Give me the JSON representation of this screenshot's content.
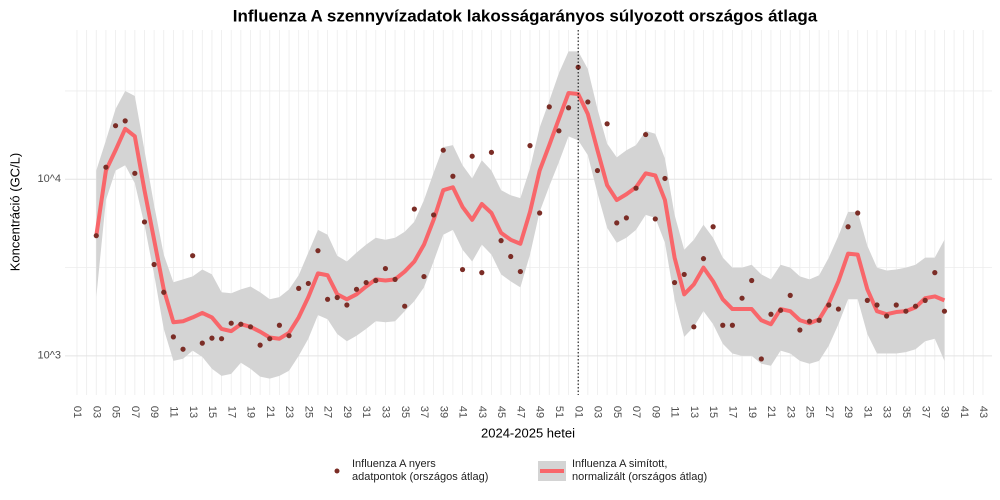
{
  "chart_data": {
    "type": "line",
    "title": "Influenza A szennyvízadatok lakosságarányos súlyozott országos átlaga",
    "x_label": "2024-2025 hetei",
    "y_label": "Koncentráció (GC/L)",
    "log_y": true,
    "grid": true,
    "legend": "bottom",
    "categories": [
      "01",
      null,
      "03",
      null,
      "05",
      null,
      "07",
      null,
      "09",
      null,
      "11",
      null,
      "13",
      null,
      "15",
      null,
      "17",
      null,
      "19",
      null,
      "21",
      null,
      "23",
      null,
      "25",
      null,
      "27",
      null,
      "29",
      null,
      "31",
      null,
      "33",
      null,
      "35",
      null,
      "37",
      null,
      "39",
      null,
      "41",
      null,
      "43",
      null,
      "45",
      null,
      "47",
      null,
      "49",
      null,
      "51",
      null,
      "01",
      null,
      "03",
      null,
      "05",
      null,
      "07",
      null,
      "09",
      null,
      "11",
      null,
      "13",
      null,
      "15",
      null,
      "17",
      null,
      "19",
      null,
      "21",
      null,
      "23",
      null,
      "25",
      null,
      "27",
      null,
      "29",
      null,
      "31",
      null,
      "33",
      null,
      "35",
      null,
      "37",
      null,
      "39",
      null,
      "41",
      null,
      "43"
    ],
    "vline": {
      "category_index": 52
    },
    "ylim": [
      600,
      70000
    ],
    "yticks": [
      {
        "value": 1000,
        "label": "10^3"
      },
      {
        "value": 10000,
        "label": "10^4"
      }
    ],
    "y_minor_grid": [
      3162,
      31623
    ],
    "series": [
      {
        "name": "Influenza A nyers\n adatpontok (országos átlag)",
        "type": "scatter",
        "color": "#7b2d26",
        "values": [
          null,
          null,
          4790,
          11700,
          20100,
          21400,
          10800,
          5730,
          3290,
          2290,
          1280,
          1090,
          3690,
          1180,
          1260,
          1250,
          1530,
          1510,
          1460,
          1150,
          1250,
          1490,
          1300,
          2410,
          2570,
          3940,
          2090,
          2140,
          1940,
          2380,
          2600,
          2670,
          3120,
          2710,
          1910,
          6780,
          2810,
          6280,
          14600,
          10400,
          3080,
          13500,
          2960,
          14200,
          4490,
          3650,
          3000,
          15500,
          6440,
          25700,
          18800,
          25400,
          43100,
          27400,
          11200,
          20600,
          5660,
          6040,
          8900,
          17900,
          5960,
          10100,
          2600,
          2890,
          1460,
          3550,
          5380,
          1490,
          1490,
          2120,
          2670,
          960,
          1720,
          1810,
          2200,
          1400,
          1570,
          1590,
          1940,
          1840,
          5380,
          6440,
          2060,
          1940,
          1680,
          1940,
          1790,
          1910,
          2060,
          2960,
          1790,
          null,
          null,
          null,
          null
        ]
      },
      {
        "name": "Influenza A simított,\n normalizált (országos átlag)",
        "type": "line",
        "color": "#f8666a",
        "band_color": "#d4d4d4",
        "values": [
          null,
          null,
          4780,
          11200,
          14600,
          19300,
          17500,
          8670,
          4540,
          2380,
          1550,
          1570,
          1650,
          1750,
          1650,
          1420,
          1380,
          1510,
          1460,
          1370,
          1270,
          1250,
          1350,
          1650,
          2150,
          2930,
          2860,
          2230,
          2090,
          2230,
          2470,
          2710,
          2670,
          2710,
          3000,
          3420,
          4260,
          5890,
          8670,
          9010,
          6970,
          5890,
          7240,
          6440,
          4970,
          4540,
          4310,
          6530,
          11200,
          15600,
          22000,
          30800,
          30400,
          23400,
          14600,
          9250,
          7620,
          8220,
          9010,
          10800,
          10500,
          7620,
          3600,
          2230,
          2540,
          3160,
          2640,
          2090,
          1840,
          1840,
          1840,
          1590,
          1510,
          1840,
          1790,
          1590,
          1530,
          1610,
          1980,
          2640,
          3790,
          3740,
          2380,
          1790,
          1720,
          1770,
          1790,
          1880,
          2120,
          2170,
          2060,
          null,
          null,
          null,
          null
        ],
        "upper": [
          null,
          null,
          11200,
          16600,
          25000,
          31600,
          29600,
          14600,
          7140,
          3740,
          2610,
          2710,
          2820,
          3080,
          2890,
          2290,
          2260,
          2380,
          2470,
          2290,
          2090,
          2150,
          2380,
          2860,
          3840,
          5170,
          4850,
          3690,
          3420,
          3840,
          4260,
          4660,
          4540,
          4660,
          5040,
          5740,
          7620,
          10900,
          15200,
          15600,
          12000,
          10100,
          12800,
          11200,
          8670,
          8110,
          7820,
          11500,
          19600,
          27800,
          39900,
          53000,
          53000,
          42100,
          25000,
          15900,
          13300,
          14600,
          15600,
          18800,
          18100,
          13100,
          6280,
          3990,
          4540,
          5520,
          4660,
          3600,
          3160,
          3160,
          3280,
          2890,
          2710,
          3280,
          3160,
          2820,
          2710,
          2860,
          3600,
          4780,
          6530,
          6530,
          4200,
          3160,
          3040,
          3080,
          3160,
          3280,
          3600,
          3600,
          4540,
          null,
          null,
          null,
          null
        ],
        "lower": [
          null,
          null,
          2150,
          7620,
          11200,
          12000,
          9490,
          5520,
          2890,
          1420,
          937,
          962,
          1070,
          987,
          845,
          770,
          790,
          913,
          845,
          762,
          743,
          770,
          823,
          1000,
          1250,
          1700,
          1610,
          1330,
          1210,
          1300,
          1420,
          1570,
          1550,
          1570,
          1790,
          2040,
          2440,
          3420,
          4850,
          5170,
          3990,
          3420,
          4260,
          3740,
          2890,
          2640,
          2440,
          3740,
          6530,
          9130,
          12500,
          17500,
          16600,
          13700,
          8330,
          5310,
          4370,
          4660,
          5170,
          6280,
          6040,
          4370,
          2090,
          1280,
          1460,
          1790,
          1510,
          1170,
          1030,
          1000,
          1000,
          902,
          879,
          1070,
          1030,
          937,
          902,
          937,
          1140,
          1510,
          2090,
          2090,
          1330,
          1030,
          1030,
          1030,
          1050,
          1090,
          1210,
          1250,
          937,
          null,
          null,
          null,
          null
        ]
      }
    ]
  }
}
